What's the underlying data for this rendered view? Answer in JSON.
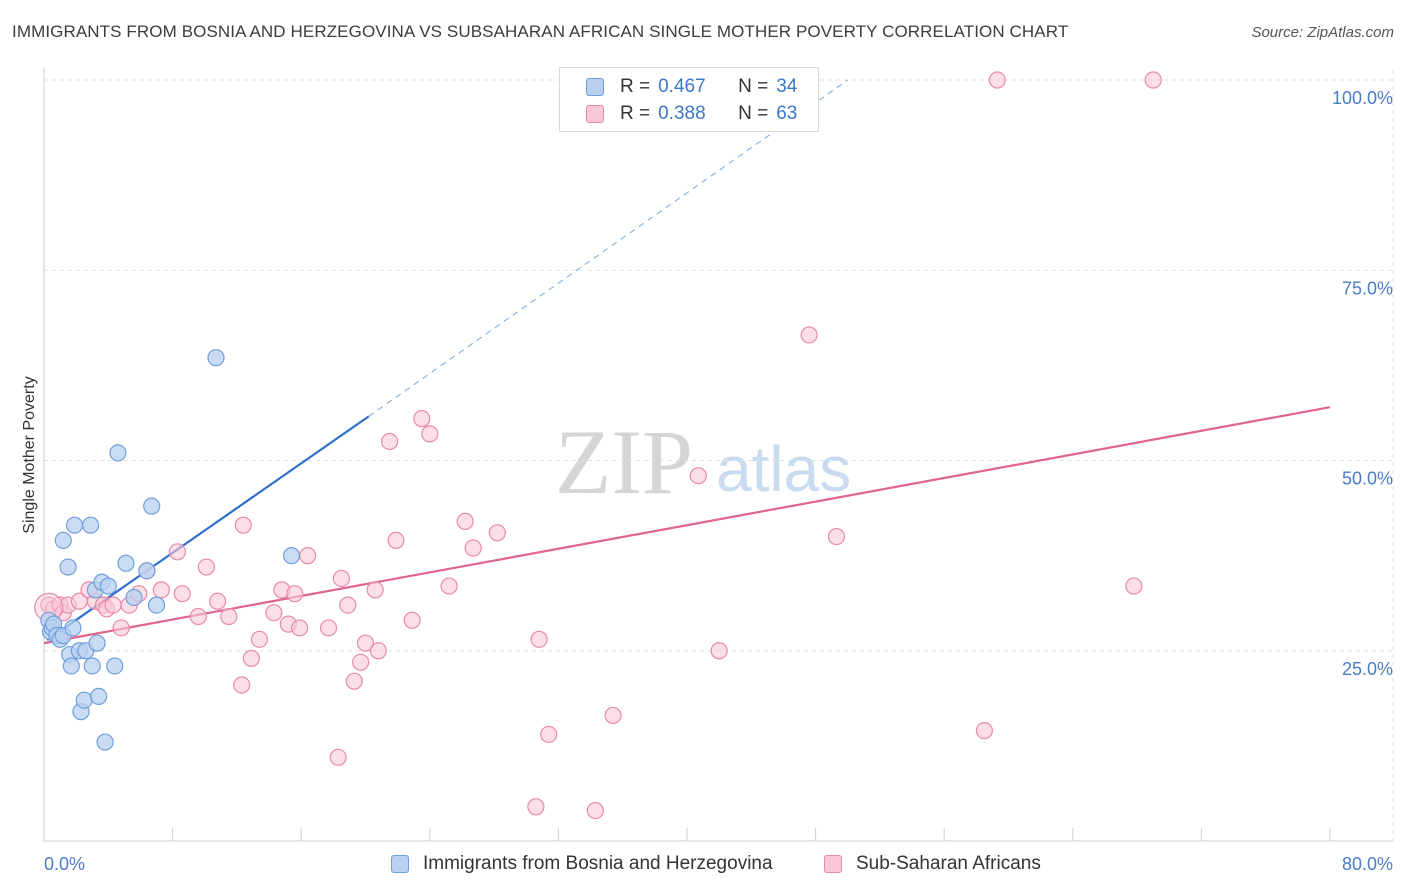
{
  "title": "IMMIGRANTS FROM BOSNIA AND HERZEGOVINA VS SUBSAHARAN AFRICAN SINGLE MOTHER POVERTY CORRELATION CHART",
  "source": "Source: ZipAtlas.com",
  "watermark": {
    "zip": "ZIP",
    "atlas": "atlas"
  },
  "colors": {
    "blue_fill": "#b8d0f0",
    "blue_stroke": "#6f9fdc",
    "blue_line": "#2f6fc9",
    "pink_fill": "#f8c8d6",
    "pink_stroke": "#e88aa8",
    "pink_line": "#e0648f",
    "axis_text": "#4a7cc8",
    "grid": "#e2e2e2"
  },
  "legend": {
    "r_label": "R =",
    "n_label": "N =",
    "items": [
      {
        "r": "0.467",
        "n": "34"
      },
      {
        "r": "0.388",
        "n": "63"
      }
    ]
  },
  "bottom_legend": [
    "Immigrants from Bosnia and Herzegovina",
    "Sub-Saharan Africans"
  ],
  "chart_data": {
    "type": "scatter",
    "title": "IMMIGRANTS FROM BOSNIA AND HERZEGOVINA VS SUBSAHARAN AFRICAN SINGLE MOTHER POVERTY CORRELATION CHART",
    "xlabel": "",
    "ylabel": "Single Mother Poverty",
    "xlim": [
      0,
      80
    ],
    "ylim": [
      0,
      100
    ],
    "x_tick_labels": [
      "0.0%",
      "80.0%"
    ],
    "y_ticks": [
      25,
      50,
      75,
      100
    ],
    "y_tick_labels": [
      "25.0%",
      "50.0%",
      "75.0%",
      "100.0%"
    ],
    "grid": true,
    "legend_position": "top-center",
    "series": [
      {
        "name": "Immigrants from Bosnia and Herzegovina",
        "r": 0.467,
        "n": 34,
        "points": [
          [
            0.3,
            29
          ],
          [
            0.4,
            27.5
          ],
          [
            0.5,
            28
          ],
          [
            0.6,
            28.5
          ],
          [
            0.8,
            27
          ],
          [
            1,
            26.5
          ],
          [
            1.2,
            27
          ],
          [
            1.2,
            39.5
          ],
          [
            1.5,
            36
          ],
          [
            1.6,
            24.5
          ],
          [
            1.7,
            23
          ],
          [
            1.8,
            28
          ],
          [
            1.9,
            41.5
          ],
          [
            2.2,
            25
          ],
          [
            2.3,
            17
          ],
          [
            2.5,
            18.5
          ],
          [
            2.6,
            25
          ],
          [
            2.9,
            41.5
          ],
          [
            3,
            23
          ],
          [
            3.2,
            33
          ],
          [
            3.3,
            26
          ],
          [
            3.4,
            19
          ],
          [
            3.6,
            34
          ],
          [
            3.8,
            13
          ],
          [
            4,
            33.5
          ],
          [
            4.4,
            23
          ],
          [
            4.6,
            51
          ],
          [
            5.1,
            36.5
          ],
          [
            5.6,
            32
          ],
          [
            6.4,
            35.5
          ],
          [
            6.7,
            44
          ],
          [
            7,
            31
          ],
          [
            10.7,
            63.5
          ],
          [
            15.4,
            37.5
          ]
        ],
        "trend": {
          "x": [
            0.2,
            20.2
          ],
          "y": [
            26.4,
            55.8
          ]
        },
        "trend_ext": {
          "x": [
            20.2,
            50
          ],
          "y": [
            55.8,
            100
          ]
        }
      },
      {
        "name": "Sub-Saharan Africans",
        "r": 0.388,
        "n": 63,
        "points": [
          [
            0.3,
            31
          ],
          [
            0.6,
            30.5
          ],
          [
            1,
            31
          ],
          [
            1.2,
            30
          ],
          [
            1.5,
            31
          ],
          [
            2.2,
            31.5
          ],
          [
            2.8,
            33
          ],
          [
            3.2,
            31.5
          ],
          [
            3.7,
            31
          ],
          [
            3.9,
            30.5
          ],
          [
            4.3,
            31
          ],
          [
            4.8,
            28
          ],
          [
            5.3,
            31
          ],
          [
            5.9,
            32.5
          ],
          [
            6.4,
            35.5
          ],
          [
            7.3,
            33
          ],
          [
            8.3,
            38
          ],
          [
            8.6,
            32.5
          ],
          [
            9.6,
            29.5
          ],
          [
            10.1,
            36
          ],
          [
            10.8,
            31.5
          ],
          [
            11.5,
            29.5
          ],
          [
            12.3,
            20.5
          ],
          [
            12.4,
            41.5
          ],
          [
            12.9,
            24
          ],
          [
            13.4,
            26.5
          ],
          [
            14.3,
            30
          ],
          [
            14.8,
            33
          ],
          [
            15.2,
            28.5
          ],
          [
            15.6,
            32.5
          ],
          [
            15.9,
            28
          ],
          [
            16.4,
            37.5
          ],
          [
            17.7,
            28
          ],
          [
            18.3,
            11
          ],
          [
            18.5,
            34.5
          ],
          [
            18.9,
            31
          ],
          [
            19.3,
            21
          ],
          [
            19.7,
            23.5
          ],
          [
            20,
            26
          ],
          [
            20.6,
            33
          ],
          [
            20.8,
            25
          ],
          [
            21.5,
            52.5
          ],
          [
            21.9,
            39.5
          ],
          [
            22.9,
            29
          ],
          [
            23.5,
            55.5
          ],
          [
            24,
            53.5
          ],
          [
            25.2,
            33.5
          ],
          [
            26.2,
            42
          ],
          [
            26.7,
            38.5
          ],
          [
            28.2,
            40.5
          ],
          [
            30.6,
            4.5
          ],
          [
            30.8,
            26.5
          ],
          [
            31.4,
            14
          ],
          [
            34.3,
            4
          ],
          [
            35.4,
            16.5
          ],
          [
            40.7,
            48
          ],
          [
            42,
            25
          ],
          [
            47.6,
            66.5
          ],
          [
            49.3,
            40
          ],
          [
            58.5,
            14.5
          ],
          [
            59.3,
            100
          ],
          [
            67.8,
            33.5
          ],
          [
            69,
            100
          ]
        ],
        "trend": {
          "x": [
            0,
            80
          ],
          "y": [
            26,
            57
          ]
        }
      }
    ]
  }
}
